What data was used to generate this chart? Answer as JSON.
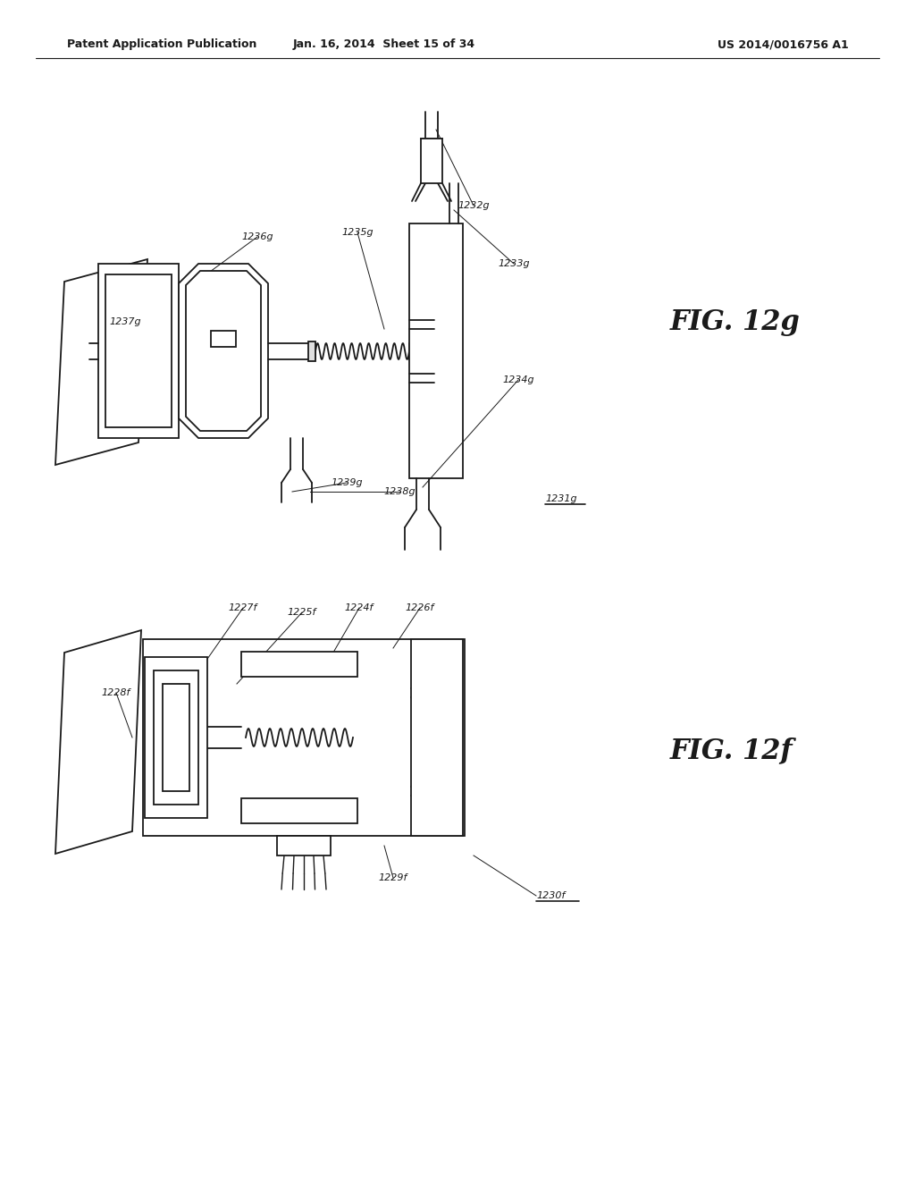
{
  "bg_color": "#ffffff",
  "line_color": "#1a1a1a",
  "header_left": "Patent Application Publication",
  "header_center": "Jan. 16, 2014  Sheet 15 of 34",
  "header_right": "US 2014/0016756 A1",
  "fig_top_label": "FIG. 12g",
  "fig_bottom_label": "FIG. 12f"
}
